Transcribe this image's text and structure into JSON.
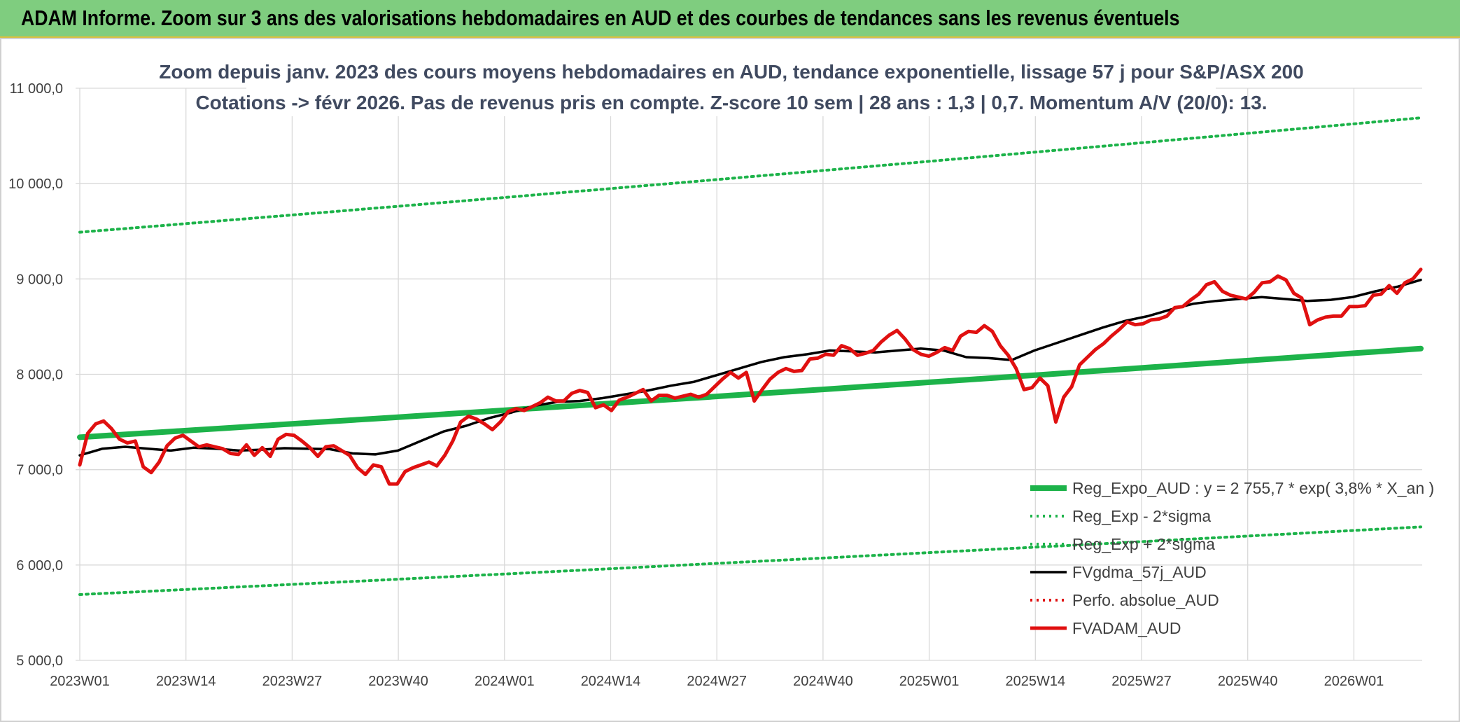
{
  "banner": {
    "title": "ADAM Informe. Zoom sur 3 ans des valorisations hebdomadaires en AUD et des courbes de tendances sans les revenus éventuels"
  },
  "chart_data": {
    "type": "line",
    "title": "Zoom depuis janv. 2023 des cours moyens hebdomadaires en AUD, tendance exponentielle, lissage 57 j pour S&P/ASX 200",
    "subtitle": "Cotations -> févr 2026. Pas de revenus pris en compte. Z-score 10 sem | 28 ans : 1,3 | 0,7. Momentum A/V (20/0): 13.",
    "xlabel": "",
    "ylabel": "",
    "ylim": [
      5000,
      11000
    ],
    "yticks": [
      "5 000,0",
      "6 000,0",
      "7 000,0",
      "8 000,0",
      "9 000,0",
      "10 000,0",
      "11 000,0"
    ],
    "xticks": [
      "2023W01",
      "2023W14",
      "2023W27",
      "2023W40",
      "2024W01",
      "2024W14",
      "2024W27",
      "2024W40",
      "2025W01",
      "2025W14",
      "2025W27",
      "2025W40",
      "2026W01"
    ],
    "grid": true,
    "legend_position": "bottom-right",
    "series": [
      {
        "name": "Reg_Expo_AUD : y = 2 755,7 * exp( 3,8% *  X_an )",
        "color": "#1db34a",
        "style": "solid-thick",
        "start": 7340,
        "end": 8270
      },
      {
        "name": "Reg_Exp - 2*sigma",
        "color": "#1db34a",
        "style": "dotted",
        "start": 5690,
        "end": 6400
      },
      {
        "name": "Reg_Exp + 2*sigma",
        "color": "#1db34a",
        "style": "dotted",
        "start": 9490,
        "end": 10690
      },
      {
        "name": "FVgdma_57j_AUD",
        "color": "#000000",
        "style": "solid",
        "values": [
          7150,
          7220,
          7240,
          7220,
          7200,
          7230,
          7220,
          7200,
          7210,
          7225,
          7220,
          7215,
          7170,
          7160,
          7200,
          7300,
          7400,
          7460,
          7540,
          7600,
          7670,
          7710,
          7720,
          7750,
          7790,
          7830,
          7880,
          7920,
          7990,
          8060,
          8130,
          8180,
          8210,
          8250,
          8240,
          8230,
          8250,
          8270,
          8250,
          8180,
          8170,
          8150,
          8250,
          8330,
          8410,
          8490,
          8560,
          8610,
          8680,
          8740,
          8770,
          8790,
          8810,
          8790,
          8770,
          8780,
          8810,
          8870,
          8920,
          8990
        ]
      },
      {
        "name": "Perfo. absolue_AUD",
        "color": "#e01010",
        "style": "dotted",
        "values": []
      },
      {
        "name": "FVADAM_AUD",
        "color": "#e01010",
        "style": "solid-thick",
        "values": [
          7050,
          7380,
          7480,
          7510,
          7430,
          7320,
          7280,
          7300,
          7030,
          6970,
          7080,
          7250,
          7330,
          7360,
          7300,
          7240,
          7260,
          7240,
          7220,
          7170,
          7160,
          7260,
          7150,
          7230,
          7140,
          7320,
          7370,
          7360,
          7300,
          7230,
          7140,
          7240,
          7250,
          7200,
          7150,
          7020,
          6950,
          7050,
          7030,
          6850,
          6850,
          6980,
          7020,
          7050,
          7080,
          7040,
          7150,
          7300,
          7500,
          7560,
          7530,
          7480,
          7420,
          7500,
          7610,
          7640,
          7620,
          7660,
          7700,
          7760,
          7720,
          7720,
          7800,
          7830,
          7810,
          7650,
          7680,
          7620,
          7730,
          7760,
          7800,
          7840,
          7720,
          7780,
          7780,
          7750,
          7770,
          7790,
          7760,
          7790,
          7870,
          7950,
          8020,
          7960,
          8020,
          7720,
          7840,
          7950,
          8020,
          8060,
          8030,
          8040,
          8160,
          8170,
          8210,
          8200,
          8300,
          8270,
          8200,
          8220,
          8250,
          8340,
          8410,
          8460,
          8370,
          8260,
          8210,
          8190,
          8230,
          8280,
          8250,
          8400,
          8450,
          8440,
          8510,
          8450,
          8300,
          8200,
          8060,
          7840,
          7860,
          7960,
          7880,
          7500,
          7760,
          7870,
          8100,
          8180,
          8260,
          8320,
          8400,
          8470,
          8550,
          8520,
          8530,
          8570,
          8580,
          8610,
          8700,
          8710,
          8780,
          8840,
          8940,
          8970,
          8870,
          8830,
          8810,
          8790,
          8860,
          8960,
          8970,
          9030,
          8990,
          8850,
          8800,
          8520,
          8570,
          8600,
          8610,
          8610,
          8710,
          8710,
          8720,
          8830,
          8840,
          8930,
          8850,
          8960,
          9000,
          9100
        ]
      }
    ]
  }
}
